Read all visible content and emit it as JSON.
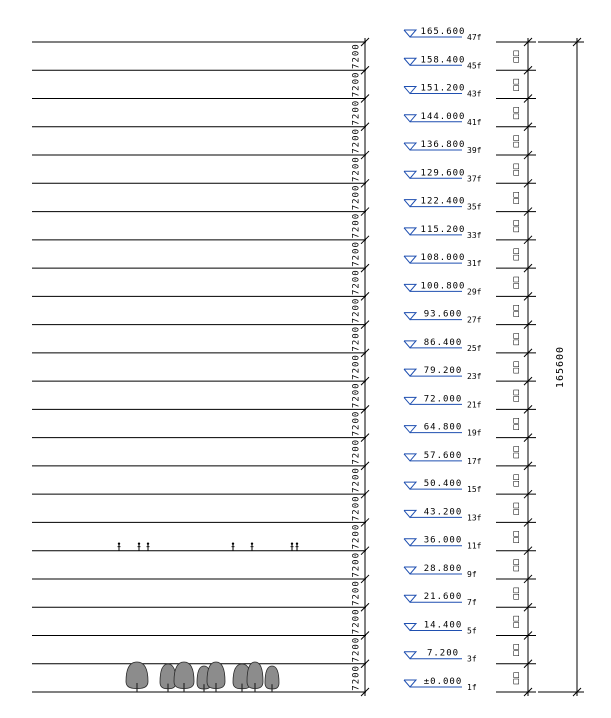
{
  "drawing": {
    "total_height_label": "165600",
    "dimension_label": "7200",
    "right_dimension_label": "□□",
    "levels": [
      {
        "elevation": "±0.000",
        "floor": "1f"
      },
      {
        "elevation": "7.200",
        "floor": "3f"
      },
      {
        "elevation": "14.400",
        "floor": "5f"
      },
      {
        "elevation": "21.600",
        "floor": "7f"
      },
      {
        "elevation": "28.800",
        "floor": "9f"
      },
      {
        "elevation": "36.000",
        "floor": "11f"
      },
      {
        "elevation": "43.200",
        "floor": "13f"
      },
      {
        "elevation": "50.400",
        "floor": "15f"
      },
      {
        "elevation": "57.600",
        "floor": "17f"
      },
      {
        "elevation": "64.800",
        "floor": "19f"
      },
      {
        "elevation": "72.000",
        "floor": "21f"
      },
      {
        "elevation": "79.200",
        "floor": "23f"
      },
      {
        "elevation": "86.400",
        "floor": "25f"
      },
      {
        "elevation": "93.600",
        "floor": "27f"
      },
      {
        "elevation": "100.800",
        "floor": "29f"
      },
      {
        "elevation": "108.000",
        "floor": "31f"
      },
      {
        "elevation": "115.200",
        "floor": "33f"
      },
      {
        "elevation": "122.400",
        "floor": "35f"
      },
      {
        "elevation": "129.600",
        "floor": "37f"
      },
      {
        "elevation": "136.800",
        "floor": "39f"
      },
      {
        "elevation": "144.000",
        "floor": "41f"
      },
      {
        "elevation": "151.200",
        "floor": "43f"
      },
      {
        "elevation": "158.400",
        "floor": "45f"
      },
      {
        "elevation": "165.600",
        "floor": "47f"
      }
    ],
    "colors": {
      "line": "#000000",
      "elevation_marker": "#1f4fb0",
      "tree_fill": "#8c8c8c",
      "tree_stroke": "#2a2a2a"
    }
  }
}
